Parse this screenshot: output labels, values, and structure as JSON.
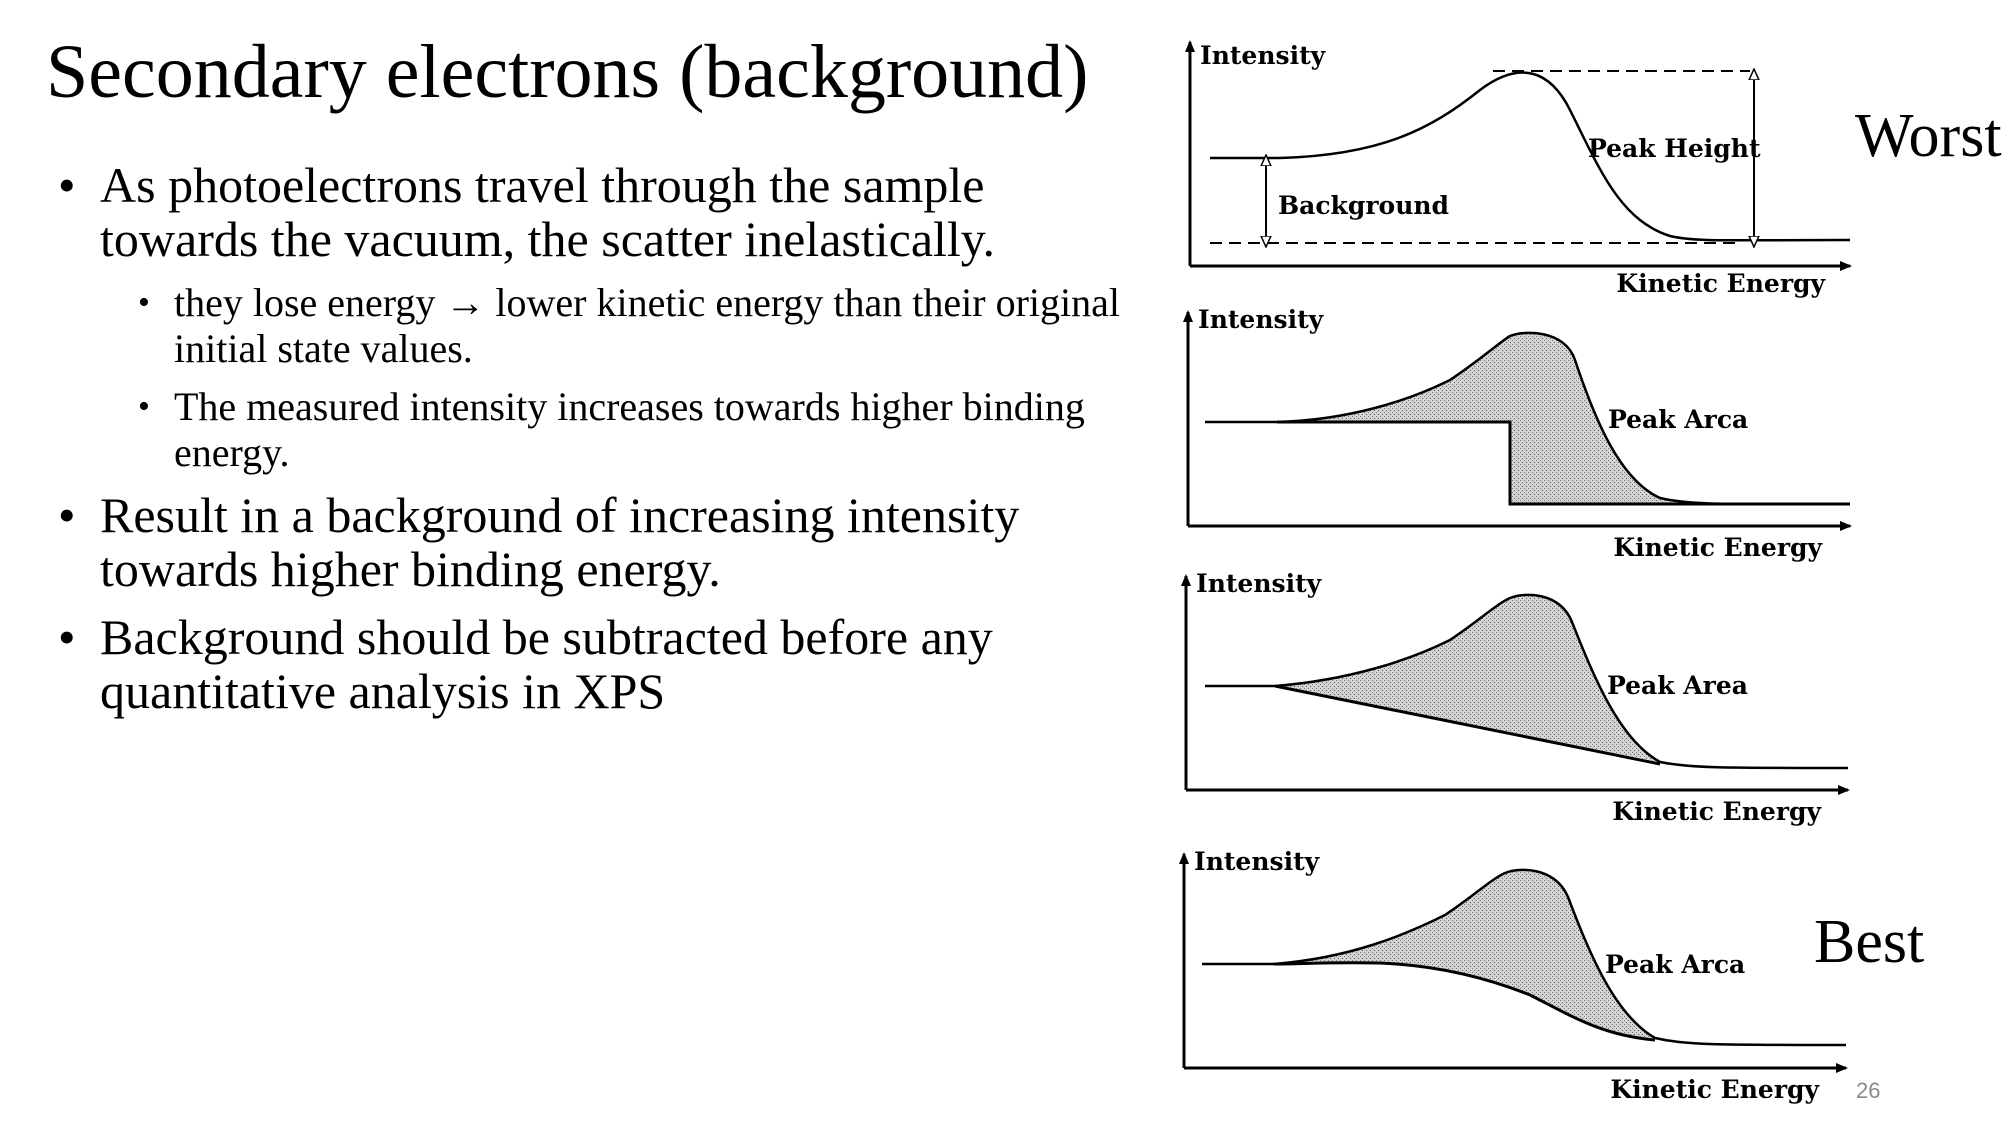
{
  "title": "Secondary electrons (background)",
  "bullets": [
    {
      "text": "As photoelectrons travel through the sample towards the vacuum, the scatter inelastically.",
      "subbullets": [
        "they lose energy → lower kinetic energy than their original initial state values.",
        "The measured intensity increases towards higher binding energy."
      ]
    },
    {
      "text": "Result in a background of increasing intensity towards higher binding energy."
    },
    {
      "text": "Background should be subtracted before any quantitative analysis in XPS"
    }
  ],
  "diagrams": {
    "panel1": {
      "ylabel": "Intensity",
      "xlabel": "Kinetic Energy",
      "background_label": "Background",
      "peak_height_label": "Peak Height",
      "rank_label": "Worst"
    },
    "panel2": {
      "ylabel": "Intensity",
      "xlabel": "Kinetic Energy",
      "peak_label": "Peak Arca"
    },
    "panel3": {
      "ylabel": "Intensity",
      "xlabel": "Kinetic Energy",
      "peak_label": "Peak Area"
    },
    "panel4": {
      "ylabel": "Intensity",
      "xlabel": "Kinetic Energy",
      "peak_label": "Peak Arca",
      "rank_label": "Best"
    }
  },
  "page_number": "26",
  "colors": {
    "text": "#000000",
    "fill_shade": "#c9c9c9",
    "page_number": "#8a8a8a"
  }
}
